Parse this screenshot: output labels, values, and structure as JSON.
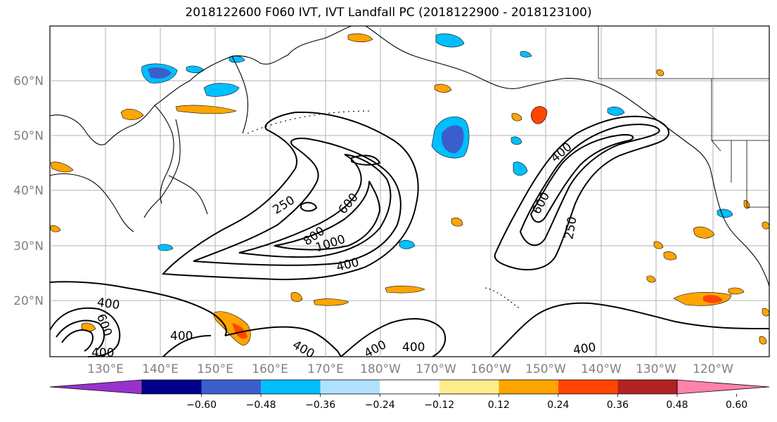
{
  "title": "2018122600 F060 IVT, IVT Landfall PC (2018122900 - 2018123100)",
  "lat_labels": [
    "60°N",
    "50°N",
    "40°N",
    "30°N",
    "20°N"
  ],
  "lon_labels": [
    "130°E",
    "140°E",
    "150°E",
    "160°E",
    "170°E",
    "180°W",
    "170°W",
    "160°W",
    "150°W",
    "140°W",
    "130°W",
    "120°W"
  ],
  "contour_labels": [
    "250",
    "600",
    "800",
    "1000",
    "400",
    "400",
    "600",
    "250",
    "400",
    "600",
    "400",
    "400",
    "400",
    "400",
    "400"
  ],
  "colorbar": {
    "colors": [
      "#9932cc",
      "#00008b",
      "#3a5fcd",
      "#00bfff",
      "#b0e2ff",
      "#ffffff",
      "#ffec8b",
      "#ffa500",
      "#ff4500",
      "#b22222",
      "#ff82ab"
    ],
    "ticks": [
      "−0.60",
      "−0.48",
      "−0.36",
      "−0.24",
      "−0.12",
      "0.12",
      "0.24",
      "0.36",
      "0.48",
      "0.60"
    ]
  },
  "palette": {
    "neg_strong": "#3a5fcd",
    "neg_mid": "#00bfff",
    "neg_light": "#b0e2ff",
    "pos_light": "#ffec8b",
    "pos_mid": "#ffa500",
    "pos_strong": "#ff4500",
    "grid": "#b0b0b0",
    "contour": "#000000"
  }
}
